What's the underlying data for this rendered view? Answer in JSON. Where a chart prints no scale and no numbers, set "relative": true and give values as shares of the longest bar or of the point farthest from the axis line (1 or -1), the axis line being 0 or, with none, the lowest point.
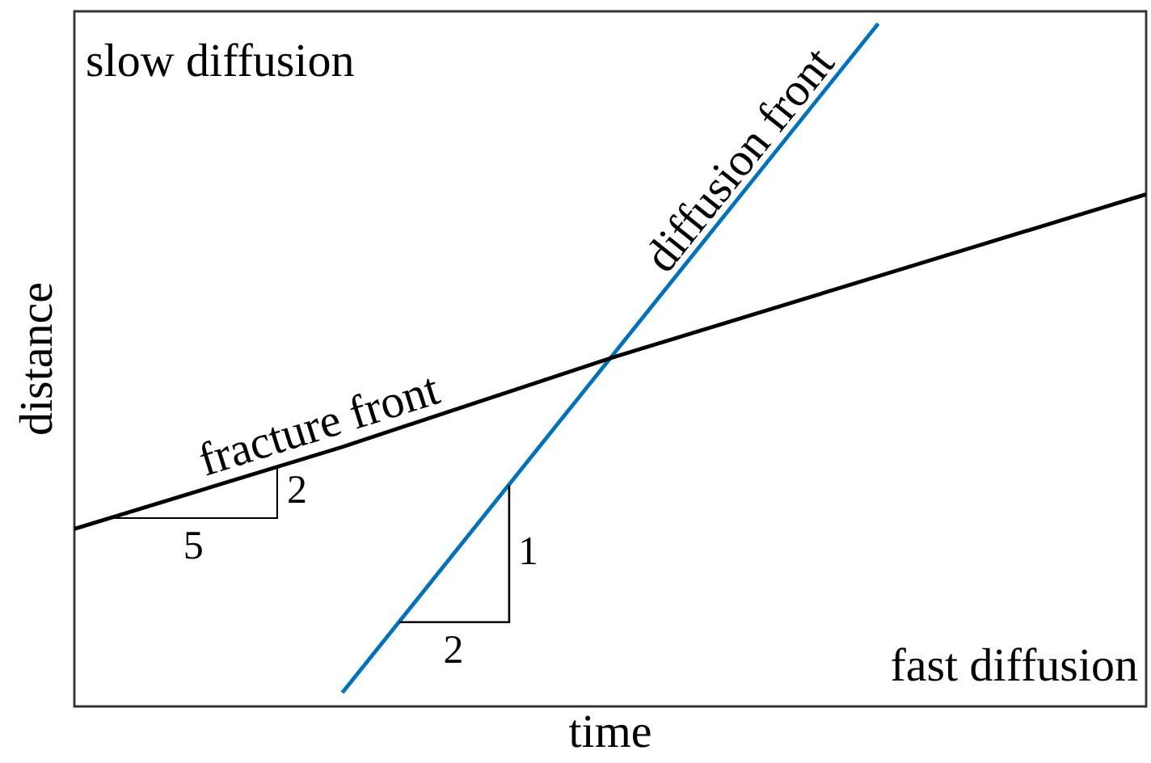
{
  "chart_data": {
    "type": "line",
    "xlabel": "time",
    "ylabel": "distance",
    "relative": true,
    "categories": [
      null,
      null,
      null,
      null,
      null
    ],
    "series": [
      {
        "name": "fracture front",
        "color": "#000000",
        "values": [
          0.26,
          0.38,
          0.51,
          0.63,
          0.75
        ]
      },
      {
        "name": "diffusion front",
        "color": "#0072bd",
        "values": [
          null,
          0.02,
          0.51,
          1,
          null
        ]
      }
    ],
    "annotations": [
      "slow diffusion",
      "fast diffusion",
      "5",
      "2",
      "2",
      "1"
    ],
    "marker": "none",
    "line_style": "solid"
  }
}
